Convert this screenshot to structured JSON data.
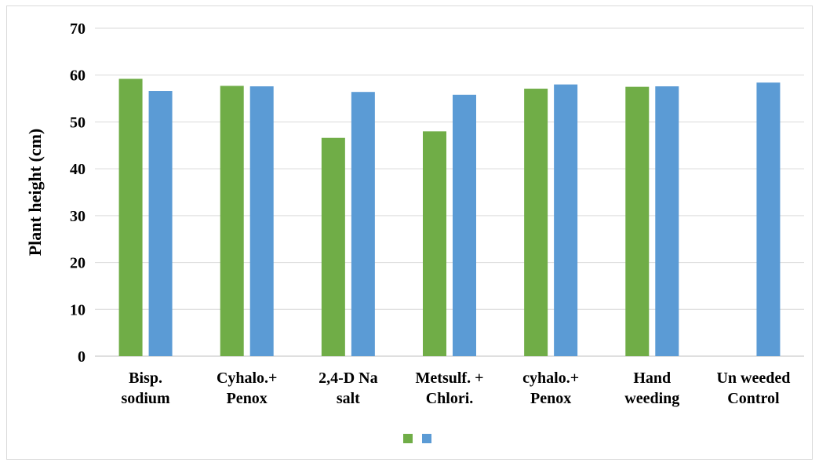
{
  "chart_data": {
    "type": "bar",
    "title": "",
    "xlabel": "",
    "ylabel": "Plant height (cm)",
    "ylim": [
      0,
      70
    ],
    "yticks": [
      0,
      10,
      20,
      30,
      40,
      50,
      60,
      70
    ],
    "grid": true,
    "legend_position": "bottom",
    "categories": [
      [
        "Bisp.",
        "sodium"
      ],
      [
        "Cyhalo.+",
        "Penox"
      ],
      [
        "2,4-D Na",
        "salt"
      ],
      [
        "Metsulf. +",
        "Chlori."
      ],
      [
        "cyhalo.+",
        "Penox"
      ],
      [
        "Hand",
        "weeding"
      ],
      [
        "Un weeded",
        "Control"
      ]
    ],
    "series": [
      {
        "color": "#70ad47",
        "values": [
          59.2,
          57.7,
          46.6,
          48.0,
          57.1,
          57.5,
          null
        ]
      },
      {
        "color": "#5b9bd5",
        "values": [
          56.6,
          57.6,
          56.4,
          55.8,
          58.0,
          57.6,
          58.4
        ]
      }
    ]
  }
}
